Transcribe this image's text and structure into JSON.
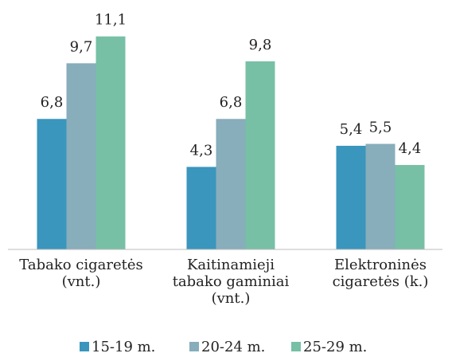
{
  "chart_data": {
    "type": "bar",
    "categories": [
      "Tabako cigaretės\n(vnt.)",
      "Kaitinamieji\ntabako gaminiai\n(vnt.)",
      "Elektroninės\ncigaretės (k.)"
    ],
    "series": [
      {
        "name": "15-19 m.",
        "color": "#3a96bd",
        "values": [
          6.8,
          4.3,
          5.4
        ],
        "value_labels": [
          "6,8",
          "4,3",
          "5,4"
        ]
      },
      {
        "name": "20-24 m.",
        "color": "#88adbb",
        "values": [
          9.7,
          6.8,
          5.5
        ],
        "value_labels": [
          "9,7",
          "6,8",
          "5,5"
        ]
      },
      {
        "name": "25-29 m.",
        "color": "#77c0a6",
        "values": [
          11.1,
          9.8,
          4.4
        ],
        "value_labels": [
          "11,1",
          "9,8",
          "4,4"
        ]
      }
    ],
    "ylim": [
      0,
      12
    ],
    "legend": "bottom"
  }
}
